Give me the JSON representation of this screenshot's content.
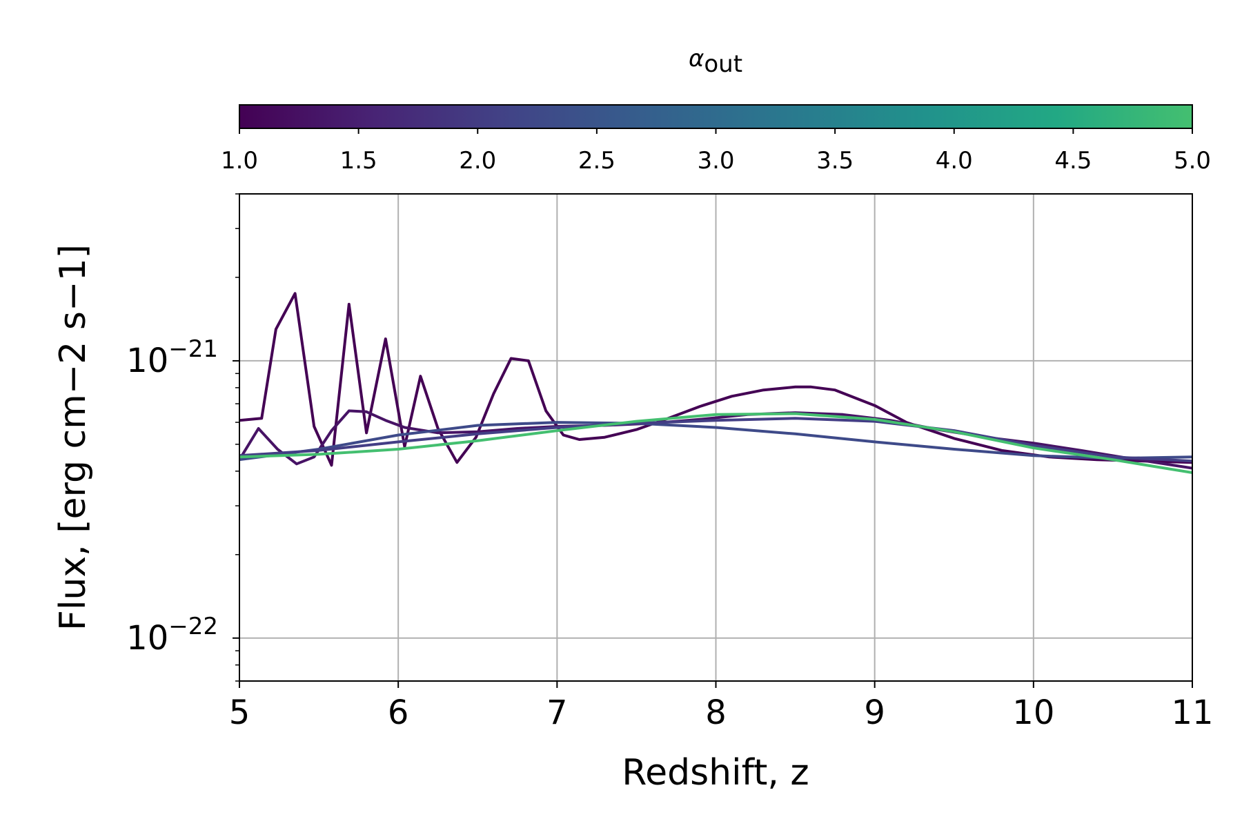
{
  "chart_data": {
    "type": "line",
    "xlabel": "Redshift, z",
    "ylabel": "Flux, [erg cm−2 s−1]",
    "xlim": [
      5,
      11
    ],
    "ylim": [
      7e-23,
      4e-21
    ],
    "yscale": "log",
    "grid": true,
    "x_ticks": [
      "5",
      "6",
      "7",
      "8",
      "9",
      "10",
      "11"
    ],
    "y_ticks": [
      {
        "value": 1e-21,
        "base": "10",
        "exp": "−21"
      },
      {
        "value": 1e-22,
        "base": "10",
        "exp": "−22"
      }
    ],
    "colorbar": {
      "label_symbol": "α",
      "label_sub": "out",
      "range": [
        1.0,
        5.0
      ],
      "ticks": [
        "1.0",
        "1.5",
        "2.0",
        "2.5",
        "3.0",
        "3.5",
        "4.0",
        "4.5",
        "5.0"
      ],
      "colormap": "viridis",
      "colors": [
        "#440154",
        "#482475",
        "#414487",
        "#355f8d",
        "#2a788e",
        "#21918c",
        "#22a884",
        "#44bf70"
      ]
    },
    "series": [
      {
        "color": "#440154",
        "color_value": 1.0,
        "x": [
          5.0,
          5.14,
          5.23,
          5.35,
          5.47,
          5.58,
          5.69,
          5.8,
          5.92,
          6.04,
          6.14,
          6.25,
          6.37,
          6.49,
          6.6,
          6.71,
          6.82,
          6.93,
          7.04,
          7.14,
          7.3,
          7.5,
          7.7,
          7.9,
          8.1,
          8.3,
          8.5,
          8.6,
          8.75,
          9.0,
          9.2,
          9.5,
          9.8,
          10.1,
          10.4,
          10.7,
          11.0
        ],
        "y": [
          6.1e-22,
          6.2e-22,
          1.3e-21,
          1.75e-21,
          5.8e-22,
          4.2e-22,
          1.6e-21,
          5.5e-22,
          1.2e-21,
          4.9e-22,
          8.8e-22,
          5.7e-22,
          4.3e-22,
          5.3e-22,
          7.6e-22,
          1.02e-21,
          1e-21,
          6.6e-22,
          5.4e-22,
          5.2e-22,
          5.3e-22,
          5.65e-22,
          6.2e-22,
          6.85e-22,
          7.45e-22,
          7.85e-22,
          8.05e-22,
          8.05e-22,
          7.85e-22,
          6.9e-22,
          6e-22,
          5.25e-22,
          4.75e-22,
          4.5e-22,
          4.4e-22,
          4.35e-22,
          4.3e-22
        ]
      },
      {
        "color": "#471365",
        "color_value": 1.3,
        "x": [
          5.0,
          5.12,
          5.24,
          5.36,
          5.47,
          5.58,
          5.69,
          5.8,
          5.92,
          6.04,
          6.25,
          6.5,
          6.75,
          7.0,
          7.3,
          7.6,
          7.9,
          8.2,
          8.5,
          8.8,
          9.1,
          9.4,
          9.7,
          10.0,
          10.3,
          10.6,
          11.0
        ],
        "y": [
          4.4e-22,
          5.7e-22,
          4.8e-22,
          4.25e-22,
          4.5e-22,
          5.6e-22,
          6.6e-22,
          6.55e-22,
          6.1e-22,
          5.75e-22,
          5.5e-22,
          5.55e-22,
          5.7e-22,
          5.8e-22,
          5.85e-22,
          5.95e-22,
          6.15e-22,
          6.4e-22,
          6.5e-22,
          6.4e-22,
          6.1e-22,
          5.65e-22,
          5.3e-22,
          5.05e-22,
          4.75e-22,
          4.45e-22,
          4.1e-22
        ]
      },
      {
        "color": "#3e4a89",
        "color_value": 2.0,
        "x": [
          5.0,
          5.5,
          6.0,
          6.5,
          7.0,
          7.5,
          8.0,
          8.5,
          9.0,
          9.5,
          10.0,
          10.5,
          11.0
        ],
        "y": [
          4.4e-22,
          4.8e-22,
          5.4e-22,
          5.85e-22,
          6e-22,
          5.95e-22,
          5.75e-22,
          5.45e-22,
          5.1e-22,
          4.8e-22,
          4.55e-22,
          4.45e-22,
          4.5e-22
        ]
      },
      {
        "color": "#433e85",
        "color_value": 1.8,
        "x": [
          5.0,
          5.5,
          6.0,
          6.5,
          7.0,
          7.5,
          8.0,
          8.5,
          9.0,
          9.5,
          10.0,
          10.5,
          11.0
        ],
        "y": [
          4.55e-22,
          4.75e-22,
          5.1e-22,
          5.45e-22,
          5.75e-22,
          5.95e-22,
          6.1e-22,
          6.2e-22,
          6.05e-22,
          5.6e-22,
          4.95e-22,
          4.5e-22,
          4.35e-22
        ]
      },
      {
        "color": "#44bf70",
        "color_value": 5.0,
        "x": [
          5.0,
          5.5,
          6.0,
          6.5,
          7.0,
          7.5,
          8.0,
          8.5,
          9.0,
          9.5,
          10.0,
          10.5,
          11.0
        ],
        "y": [
          4.5e-22,
          4.6e-22,
          4.8e-22,
          5.15e-22,
          5.6e-22,
          6.05e-22,
          6.4e-22,
          6.45e-22,
          6.15e-22,
          5.55e-22,
          4.85e-22,
          4.4e-22,
          3.95e-22
        ]
      }
    ]
  }
}
